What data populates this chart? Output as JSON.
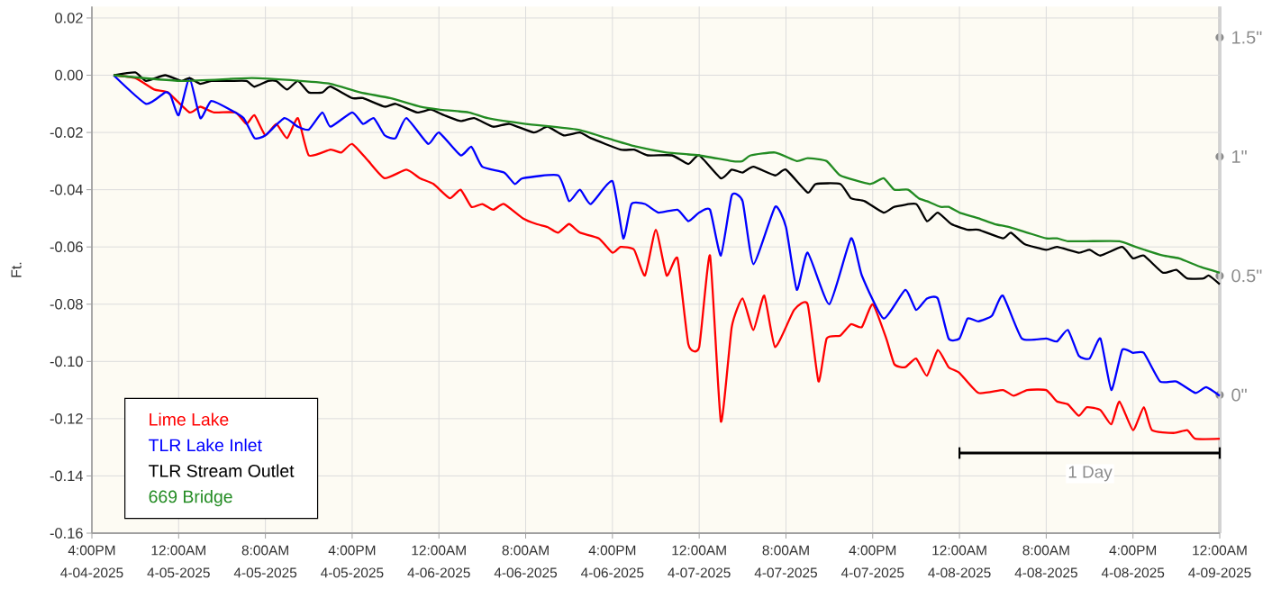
{
  "chart_data": {
    "type": "line",
    "ylabel": "Ft.",
    "xlim": [
      "2025-04-04T16:00",
      "2025-04-09T00:00"
    ],
    "ylim": [
      -0.16,
      0.024
    ],
    "y2lim": [
      -0.58,
      1.63
    ],
    "xticks": [
      {
        "value": "2025-04-04T16:00",
        "label": "4:00PM 4-04-2025"
      },
      {
        "value": "2025-04-05T00:00",
        "label": "12:00AM 4-05-2025"
      },
      {
        "value": "2025-04-05T08:00",
        "label": "8:00AM 4-05-2025"
      },
      {
        "value": "2025-04-05T16:00",
        "label": "4:00PM 4-05-2025"
      },
      {
        "value": "2025-04-06T00:00",
        "label": "12:00AM 4-06-2025"
      },
      {
        "value": "2025-04-06T08:00",
        "label": "8:00AM 4-06-2025"
      },
      {
        "value": "2025-04-06T16:00",
        "label": "4:00PM 4-06-2025"
      },
      {
        "value": "2025-04-07T00:00",
        "label": "12:00AM 4-07-2025"
      },
      {
        "value": "2025-04-07T08:00",
        "label": "8:00AM 4-07-2025"
      },
      {
        "value": "2025-04-07T16:00",
        "label": "4:00PM 4-07-2025"
      },
      {
        "value": "2025-04-08T00:00",
        "label": "12:00AM 4-08-2025"
      },
      {
        "value": "2025-04-08T08:00",
        "label": "8:00AM 4-08-2025"
      },
      {
        "value": "2025-04-08T16:00",
        "label": "4:00PM 4-08-2025"
      },
      {
        "value": "2025-04-09T00:00",
        "label": "12:00AM 4-09-2025"
      }
    ],
    "yticks": [
      {
        "value": 0.02,
        "label": "0.02"
      },
      {
        "value": 0,
        "label": "0.00"
      },
      {
        "value": -0.02,
        "label": "-0.02"
      },
      {
        "value": -0.04,
        "label": "-0.04"
      },
      {
        "value": -0.06,
        "label": "-0.06"
      },
      {
        "value": -0.08,
        "label": "-0.08"
      },
      {
        "value": -0.1,
        "label": "-0.10"
      },
      {
        "value": -0.12,
        "label": "-0.12"
      },
      {
        "value": -0.14,
        "label": "-0.14"
      },
      {
        "value": -0.16,
        "label": "-0.16"
      }
    ],
    "y2ticks": [
      {
        "value": 0,
        "label": "0\""
      },
      {
        "value": 0.5,
        "label": "0.5\""
      },
      {
        "value": 1,
        "label": "1\""
      },
      {
        "value": 1.5,
        "label": "1.5\""
      }
    ],
    "grid": true,
    "legend": "bottom left",
    "annotations": [
      "1 Day"
    ],
    "series": [
      {
        "name": "Lime Lake",
        "color": "#ff0000",
        "x": [
          "2025-04-04T18:00",
          "2025-04-04T20:00",
          "2025-04-04T21:45",
          "2025-04-04T23:00",
          "2025-04-05T01:00",
          "2025-04-05T02:00",
          "2025-04-05T03:15",
          "2025-04-05T05:15",
          "2025-04-05T06:15",
          "2025-04-05T07:00",
          "2025-04-05T08:00",
          "2025-04-05T09:00",
          "2025-04-05T10:00",
          "2025-04-05T11:00",
          "2025-04-05T12:00",
          "2025-04-05T14:00",
          "2025-04-05T15:00",
          "2025-04-05T16:00",
          "2025-04-05T17:30",
          "2025-04-05T19:00",
          "2025-04-05T21:00",
          "2025-04-05T22:15",
          "2025-04-05T23:30",
          "2025-04-06T01:00",
          "2025-04-06T02:00",
          "2025-04-06T03:00",
          "2025-04-06T04:00",
          "2025-04-06T05:00",
          "2025-04-06T06:00",
          "2025-04-06T07:45",
          "2025-04-06T09:00",
          "2025-04-06T10:00",
          "2025-04-06T11:00",
          "2025-04-06T12:00",
          "2025-04-06T13:00",
          "2025-04-06T14:45",
          "2025-04-06T16:00",
          "2025-04-06T16:45",
          "2025-04-06T18:00",
          "2025-04-06T19:00",
          "2025-04-06T20:00",
          "2025-04-06T21:00",
          "2025-04-06T22:00",
          "2025-04-06T23:00",
          "2025-04-07T00:00",
          "2025-04-07T01:00",
          "2025-04-07T02:00",
          "2025-04-07T03:00",
          "2025-04-07T04:00",
          "2025-04-07T05:00",
          "2025-04-07T06:00",
          "2025-04-07T07:00",
          "2025-04-07T08:45",
          "2025-04-07T10:00",
          "2025-04-07T11:00",
          "2025-04-07T11:45",
          "2025-04-07T13:00",
          "2025-04-07T14:00",
          "2025-04-07T15:00",
          "2025-04-07T16:00",
          "2025-04-07T17:15",
          "2025-04-07T18:00",
          "2025-04-07T19:00",
          "2025-04-07T20:00",
          "2025-04-07T21:00",
          "2025-04-07T22:00",
          "2025-04-07T23:00",
          "2025-04-08T00:00",
          "2025-04-08T01:45",
          "2025-04-08T04:00",
          "2025-04-08T05:00",
          "2025-04-08T06:15",
          "2025-04-08T08:00",
          "2025-04-08T09:00",
          "2025-04-08T10:00",
          "2025-04-08T11:00",
          "2025-04-08T11:45",
          "2025-04-08T13:00",
          "2025-04-08T14:00",
          "2025-04-08T14:45",
          "2025-04-08T16:00",
          "2025-04-08T17:00",
          "2025-04-08T17:45",
          "2025-04-08T19:45",
          "2025-04-08T21:00",
          "2025-04-08T21:45",
          "2025-04-09T00:00"
        ],
        "values": [
          0,
          -0.001,
          -0.005,
          -0.006,
          -0.013,
          -0.011,
          -0.013,
          -0.013,
          -0.017,
          -0.014,
          -0.021,
          -0.017,
          -0.022,
          -0.015,
          -0.028,
          -0.026,
          -0.027,
          -0.024,
          -0.03,
          -0.036,
          -0.033,
          -0.036,
          -0.038,
          -0.043,
          -0.04,
          -0.046,
          -0.045,
          -0.047,
          -0.045,
          -0.05,
          -0.052,
          -0.053,
          -0.055,
          -0.052,
          -0.055,
          -0.057,
          -0.062,
          -0.06,
          -0.061,
          -0.07,
          -0.054,
          -0.07,
          -0.064,
          -0.094,
          -0.095,
          -0.063,
          -0.121,
          -0.088,
          -0.078,
          -0.089,
          -0.077,
          -0.095,
          -0.082,
          -0.08,
          -0.107,
          -0.092,
          -0.091,
          -0.087,
          -0.088,
          -0.08,
          -0.092,
          -0.101,
          -0.102,
          -0.099,
          -0.105,
          -0.096,
          -0.102,
          -0.104,
          -0.111,
          -0.11,
          -0.112,
          -0.11,
          -0.11,
          -0.114,
          -0.115,
          -0.119,
          -0.116,
          -0.117,
          -0.122,
          -0.114,
          -0.124,
          -0.116,
          -0.124,
          -0.125,
          -0.124,
          -0.127,
          -0.127
        ]
      },
      {
        "name": "TLR Lake Inlet",
        "color": "#0000ff",
        "x": [
          "2025-04-04T18:00",
          "2025-04-04T21:00",
          "2025-04-04T22:45",
          "2025-04-04T23:15",
          "2025-04-05T00:00",
          "2025-04-05T01:00",
          "2025-04-05T02:00",
          "2025-04-05T03:00",
          "2025-04-05T04:45",
          "2025-04-05T06:00",
          "2025-04-05T07:00",
          "2025-04-05T08:00",
          "2025-04-05T09:45",
          "2025-04-05T11:00",
          "2025-04-05T12:00",
          "2025-04-05T13:15",
          "2025-04-05T14:00",
          "2025-04-05T16:00",
          "2025-04-05T17:00",
          "2025-04-05T18:00",
          "2025-04-05T19:00",
          "2025-04-05T20:00",
          "2025-04-05T21:00",
          "2025-04-05T23:00",
          "2025-04-06T00:00",
          "2025-04-06T02:00",
          "2025-04-06T03:00",
          "2025-04-06T04:00",
          "2025-04-06T06:00",
          "2025-04-06T07:00",
          "2025-04-06T07:45",
          "2025-04-06T11:00",
          "2025-04-06T12:00",
          "2025-04-06T13:00",
          "2025-04-06T14:00",
          "2025-04-06T16:00",
          "2025-04-06T17:00",
          "2025-04-06T17:45",
          "2025-04-06T19:00",
          "2025-04-06T20:15",
          "2025-04-06T22:00",
          "2025-04-06T23:00",
          "2025-04-07T00:00",
          "2025-04-07T01:00",
          "2025-04-07T02:00",
          "2025-04-07T03:00",
          "2025-04-07T04:00",
          "2025-04-07T05:00",
          "2025-04-07T07:00",
          "2025-04-07T08:00",
          "2025-04-07T09:00",
          "2025-04-07T10:00",
          "2025-04-07T12:00",
          "2025-04-07T14:00",
          "2025-04-07T15:00",
          "2025-04-07T17:00",
          "2025-04-07T19:00",
          "2025-04-07T20:00",
          "2025-04-07T21:00",
          "2025-04-07T22:00",
          "2025-04-07T23:00",
          "2025-04-08T00:00",
          "2025-04-08T00:45",
          "2025-04-08T01:45",
          "2025-04-08T03:00",
          "2025-04-08T04:00",
          "2025-04-08T05:45",
          "2025-04-08T08:00",
          "2025-04-08T09:00",
          "2025-04-08T10:00",
          "2025-04-08T11:00",
          "2025-04-08T12:00",
          "2025-04-08T13:00",
          "2025-04-08T14:00",
          "2025-04-08T15:00",
          "2025-04-08T16:00",
          "2025-04-08T17:00",
          "2025-04-08T18:30",
          "2025-04-08T20:00",
          "2025-04-08T21:45",
          "2025-04-08T22:45",
          "2025-04-09T00:00"
        ],
        "values": [
          0,
          -0.01,
          -0.006,
          -0.007,
          -0.014,
          -0.001,
          -0.015,
          -0.009,
          -0.012,
          -0.015,
          -0.022,
          -0.021,
          -0.015,
          -0.018,
          -0.019,
          -0.013,
          -0.018,
          -0.013,
          -0.017,
          -0.015,
          -0.021,
          -0.022,
          -0.015,
          -0.024,
          -0.02,
          -0.028,
          -0.025,
          -0.032,
          -0.034,
          -0.038,
          -0.036,
          -0.035,
          -0.044,
          -0.04,
          -0.045,
          -0.037,
          -0.057,
          -0.045,
          -0.045,
          -0.048,
          -0.047,
          -0.051,
          -0.048,
          -0.047,
          -0.063,
          -0.042,
          -0.044,
          -0.066,
          -0.046,
          -0.053,
          -0.075,
          -0.062,
          -0.08,
          -0.057,
          -0.07,
          -0.085,
          -0.075,
          -0.082,
          -0.078,
          -0.078,
          -0.092,
          -0.092,
          -0.085,
          -0.086,
          -0.084,
          -0.077,
          -0.092,
          -0.092,
          -0.093,
          -0.089,
          -0.098,
          -0.099,
          -0.092,
          -0.11,
          -0.096,
          -0.097,
          -0.097,
          -0.107,
          -0.107,
          -0.111,
          -0.109,
          -0.112
        ]
      },
      {
        "name": "TLR Stream Outlet",
        "color": "#000000",
        "x": [
          "2025-04-04T18:00",
          "2025-04-04T20:00",
          "2025-04-04T21:00",
          "2025-04-04T22:45",
          "2025-04-05T00:15",
          "2025-04-05T01:00",
          "2025-04-05T02:00",
          "2025-04-05T03:00",
          "2025-04-05T04:45",
          "2025-04-05T06:15",
          "2025-04-05T07:00",
          "2025-04-05T08:15",
          "2025-04-05T09:00",
          "2025-04-05T10:00",
          "2025-04-05T11:00",
          "2025-04-05T12:00",
          "2025-04-05T13:15",
          "2025-04-05T14:00",
          "2025-04-05T16:00",
          "2025-04-05T17:00",
          "2025-04-05T19:00",
          "2025-04-05T20:00",
          "2025-04-05T22:00",
          "2025-04-05T23:15",
          "2025-04-06T00:30",
          "2025-04-06T02:00",
          "2025-04-06T03:15",
          "2025-04-06T05:00",
          "2025-04-06T06:30",
          "2025-04-06T08:45",
          "2025-04-06T10:00",
          "2025-04-06T11:30",
          "2025-04-06T13:00",
          "2025-04-06T14:00",
          "2025-04-06T16:45",
          "2025-04-06T18:00",
          "2025-04-06T19:15",
          "2025-04-06T21:30",
          "2025-04-06T23:00",
          "2025-04-07T00:00",
          "2025-04-07T02:00",
          "2025-04-07T03:00",
          "2025-04-07T04:00",
          "2025-04-07T05:00",
          "2025-04-07T07:00",
          "2025-04-07T08:00",
          "2025-04-07T10:00",
          "2025-04-07T10:45",
          "2025-04-07T13:00",
          "2025-04-07T14:00",
          "2025-04-07T15:15",
          "2025-04-07T17:00",
          "2025-04-07T18:00",
          "2025-04-07T20:00",
          "2025-04-07T21:00",
          "2025-04-07T22:00",
          "2025-04-07T23:15",
          "2025-04-08T00:45",
          "2025-04-08T01:45",
          "2025-04-08T04:00",
          "2025-04-08T04:45",
          "2025-04-08T06:00",
          "2025-04-08T08:00",
          "2025-04-08T09:00",
          "2025-04-08T11:00",
          "2025-04-08T12:00",
          "2025-04-08T13:00",
          "2025-04-08T15:00",
          "2025-04-08T16:00",
          "2025-04-08T17:00",
          "2025-04-08T18:45",
          "2025-04-08T20:00",
          "2025-04-08T21:00",
          "2025-04-08T22:30",
          "2025-04-08T23:00",
          "2025-04-09T00:00"
        ],
        "values": [
          0,
          0.001,
          -0.002,
          0,
          -0.002,
          -0.001,
          -0.003,
          -0.002,
          -0.002,
          -0.002,
          -0.004,
          -0.002,
          -0.002,
          -0.005,
          -0.002,
          -0.006,
          -0.006,
          -0.004,
          -0.008,
          -0.008,
          -0.011,
          -0.01,
          -0.013,
          -0.012,
          -0.014,
          -0.016,
          -0.015,
          -0.018,
          -0.017,
          -0.02,
          -0.018,
          -0.021,
          -0.02,
          -0.022,
          -0.026,
          -0.026,
          -0.028,
          -0.028,
          -0.031,
          -0.028,
          -0.036,
          -0.033,
          -0.034,
          -0.032,
          -0.035,
          -0.033,
          -0.041,
          -0.038,
          -0.038,
          -0.043,
          -0.044,
          -0.048,
          -0.046,
          -0.045,
          -0.051,
          -0.048,
          -0.052,
          -0.054,
          -0.054,
          -0.057,
          -0.055,
          -0.059,
          -0.061,
          -0.06,
          -0.062,
          -0.061,
          -0.063,
          -0.06,
          -0.064,
          -0.063,
          -0.069,
          -0.068,
          -0.071,
          -0.071,
          -0.07,
          -0.073
        ]
      },
      {
        "name": "669 Bridge",
        "color": "#228b22",
        "x": [
          "2025-04-04T18:00",
          "2025-04-05T00:15",
          "2025-04-05T06:45",
          "2025-04-05T11:15",
          "2025-04-05T14:00",
          "2025-04-05T16:45",
          "2025-04-05T19:30",
          "2025-04-05T22:15",
          "2025-04-06T00:00",
          "2025-04-06T02:45",
          "2025-04-06T04:30",
          "2025-04-06T08:00",
          "2025-04-06T12:45",
          "2025-04-06T15:30",
          "2025-04-06T18:15",
          "2025-04-06T21:00",
          "2025-04-07T00:00",
          "2025-04-07T03:00",
          "2025-04-07T04:00",
          "2025-04-07T04:45",
          "2025-04-07T07:00",
          "2025-04-07T09:00",
          "2025-04-07T10:00",
          "2025-04-07T11:45",
          "2025-04-07T13:00",
          "2025-04-07T15:45",
          "2025-04-07T17:00",
          "2025-04-07T18:00",
          "2025-04-07T19:15",
          "2025-04-07T20:15",
          "2025-04-07T21:00",
          "2025-04-07T22:15",
          "2025-04-07T23:00",
          "2025-04-08T00:00",
          "2025-04-08T01:45",
          "2025-04-08T03:15",
          "2025-04-08T04:30",
          "2025-04-08T06:15",
          "2025-04-08T08:00",
          "2025-04-08T09:00",
          "2025-04-08T10:00",
          "2025-04-08T11:45",
          "2025-04-08T14:45",
          "2025-04-08T16:15",
          "2025-04-08T18:45",
          "2025-04-08T20:15",
          "2025-04-08T22:15",
          "2025-04-09T00:00"
        ],
        "values": [
          0,
          -0.002,
          -0.001,
          -0.002,
          -0.003,
          -0.006,
          -0.008,
          -0.011,
          -0.012,
          -0.013,
          -0.015,
          -0.017,
          -0.019,
          -0.022,
          -0.025,
          -0.027,
          -0.028,
          -0.03,
          -0.03,
          -0.028,
          -0.027,
          -0.03,
          -0.029,
          -0.03,
          -0.035,
          -0.038,
          -0.036,
          -0.04,
          -0.04,
          -0.043,
          -0.044,
          -0.046,
          -0.046,
          -0.048,
          -0.05,
          -0.052,
          -0.053,
          -0.055,
          -0.057,
          -0.057,
          -0.058,
          -0.058,
          -0.058,
          -0.06,
          -0.063,
          -0.064,
          -0.067,
          -0.069
        ]
      },
      {
        "color": "#000000",
        "x": [
          "2025-04-08T00:00",
          "2025-04-09T00:00"
        ],
        "values": [
          -0.132,
          -0.132
        ],
        "errors": [
          0.002,
          0.002
        ]
      }
    ]
  }
}
